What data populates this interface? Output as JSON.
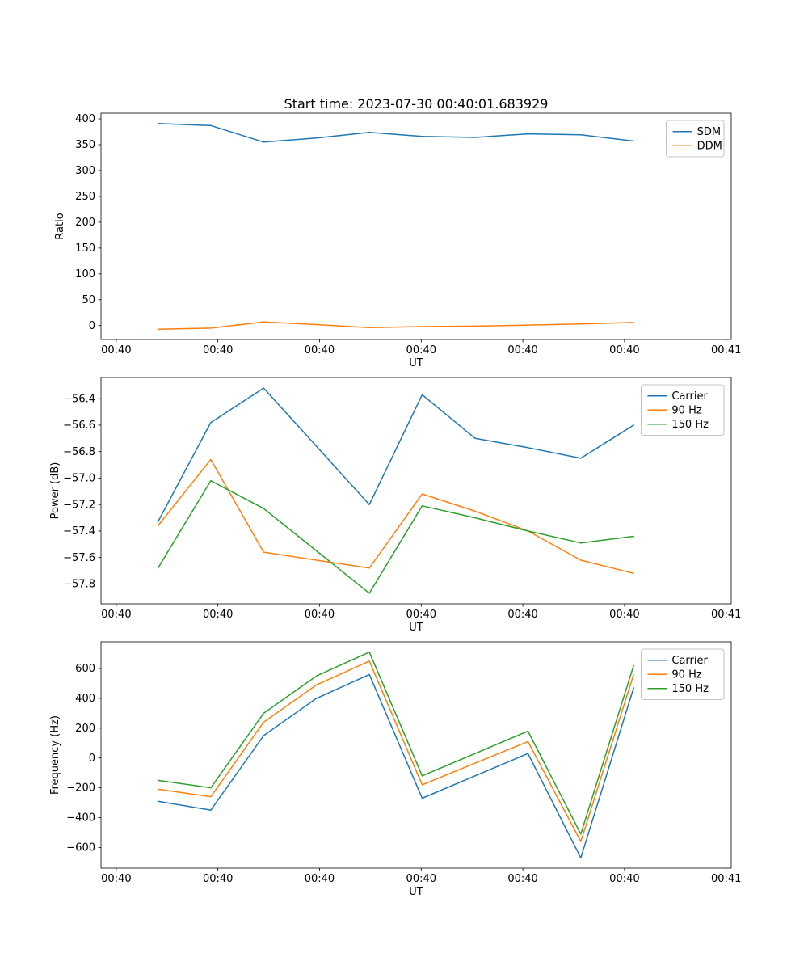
{
  "figure": {
    "title": "Start time: 2023-07-30 00:40:01.683929",
    "background": "#ffffff",
    "text_color": "#000000"
  },
  "colors": {
    "blue": "#1f77b4",
    "orange": "#ff7f0e",
    "green": "#2ca02c",
    "spine": "#000000",
    "legend_border": "#b3b3b3"
  },
  "chart_data": [
    {
      "type": "line",
      "title": "Start time: 2023-07-30 00:40:01.683929",
      "xlabel": "UT",
      "ylabel": "Ratio",
      "x_seconds_after_00_40_00": [
        4.1,
        9.3,
        14.5,
        19.7,
        24.9,
        30.1,
        35.3,
        40.5,
        45.7,
        50.9
      ],
      "xlim": [
        -1.5,
        60.5
      ],
      "xticks": [
        0,
        10,
        20,
        30,
        40,
        50,
        60
      ],
      "xtick_labels": [
        "00:40",
        "00:40",
        "00:40",
        "00:40",
        "00:40",
        "00:40",
        "00:41"
      ],
      "ylim": [
        -27,
        411
      ],
      "yticks": [
        0,
        50,
        100,
        150,
        200,
        250,
        300,
        350,
        400
      ],
      "ytick_labels": [
        "0",
        "50",
        "100",
        "150",
        "200",
        "250",
        "300",
        "350",
        "400"
      ],
      "grid": false,
      "legend_position": "upper right",
      "series": [
        {
          "name": "SDM",
          "color": "#1f77b4",
          "values": [
            391,
            387,
            355,
            363,
            374,
            366,
            364,
            371,
            369,
            357
          ]
        },
        {
          "name": "DDM",
          "color": "#ff7f0e",
          "values": [
            -7,
            -5,
            7,
            2,
            -4,
            -2,
            -1,
            1,
            3,
            6
          ]
        }
      ]
    },
    {
      "type": "line",
      "title": "",
      "xlabel": "UT",
      "ylabel": "Power (dB)",
      "x_seconds_after_00_40_00": [
        4.1,
        9.3,
        14.5,
        19.7,
        24.9,
        30.1,
        35.3,
        40.5,
        45.7,
        50.9
      ],
      "xlim": [
        -1.5,
        60.5
      ],
      "xticks": [
        0,
        10,
        20,
        30,
        40,
        50,
        60
      ],
      "xtick_labels": [
        "00:40",
        "00:40",
        "00:40",
        "00:40",
        "00:40",
        "00:40",
        "00:41"
      ],
      "ylim": [
        -57.95,
        -56.24
      ],
      "yticks": [
        -57.8,
        -57.6,
        -57.4,
        -57.2,
        -57.0,
        -56.8,
        -56.6,
        -56.4
      ],
      "ytick_labels": [
        "−57.8",
        "−57.6",
        "−57.4",
        "−57.2",
        "−57.0",
        "−56.8",
        "−56.6",
        "−56.4"
      ],
      "grid": false,
      "legend_position": "upper right",
      "series": [
        {
          "name": "Carrier",
          "color": "#1f77b4",
          "values": [
            -57.33,
            -56.58,
            -56.32,
            -56.76,
            -57.2,
            -56.37,
            -56.7,
            -56.77,
            -56.85,
            -56.6
          ]
        },
        {
          "name": "90 Hz",
          "color": "#ff7f0e",
          "values": [
            -57.36,
            -56.86,
            -57.56,
            -57.62,
            -57.68,
            -57.12,
            -57.25,
            -57.4,
            -57.62,
            -57.72
          ]
        },
        {
          "name": "150 Hz",
          "color": "#2ca02c",
          "values": [
            -57.68,
            -57.02,
            -57.23,
            -57.55,
            -57.87,
            -57.21,
            -57.3,
            -57.4,
            -57.49,
            -57.44
          ]
        }
      ]
    },
    {
      "type": "line",
      "title": "",
      "xlabel": "UT",
      "ylabel": "Frequency (Hz)",
      "x_seconds_after_00_40_00": [
        4.1,
        9.3,
        14.5,
        19.7,
        24.9,
        30.1,
        35.3,
        40.5,
        45.7,
        50.9
      ],
      "xlim": [
        -1.5,
        60.5
      ],
      "xticks": [
        0,
        10,
        20,
        30,
        40,
        50,
        60
      ],
      "xtick_labels": [
        "00:40",
        "00:40",
        "00:40",
        "00:40",
        "00:40",
        "00:40",
        "00:41"
      ],
      "ylim": [
        -739,
        779
      ],
      "yticks": [
        -600,
        -400,
        -200,
        0,
        200,
        400,
        600
      ],
      "ytick_labels": [
        "−600",
        "−400",
        "−200",
        "0",
        "200",
        "400",
        "600"
      ],
      "grid": false,
      "legend_position": "upper right",
      "series": [
        {
          "name": "Carrier",
          "color": "#1f77b4",
          "values": [
            -290,
            -350,
            150,
            400,
            560,
            -270,
            -120,
            30,
            -670,
            470
          ]
        },
        {
          "name": "90 Hz",
          "color": "#ff7f0e",
          "values": [
            -210,
            -260,
            240,
            490,
            650,
            -180,
            -35,
            110,
            -560,
            560
          ]
        },
        {
          "name": "150 Hz",
          "color": "#2ca02c",
          "values": [
            -150,
            -200,
            300,
            550,
            710,
            -120,
            30,
            180,
            -510,
            620
          ]
        }
      ]
    }
  ]
}
